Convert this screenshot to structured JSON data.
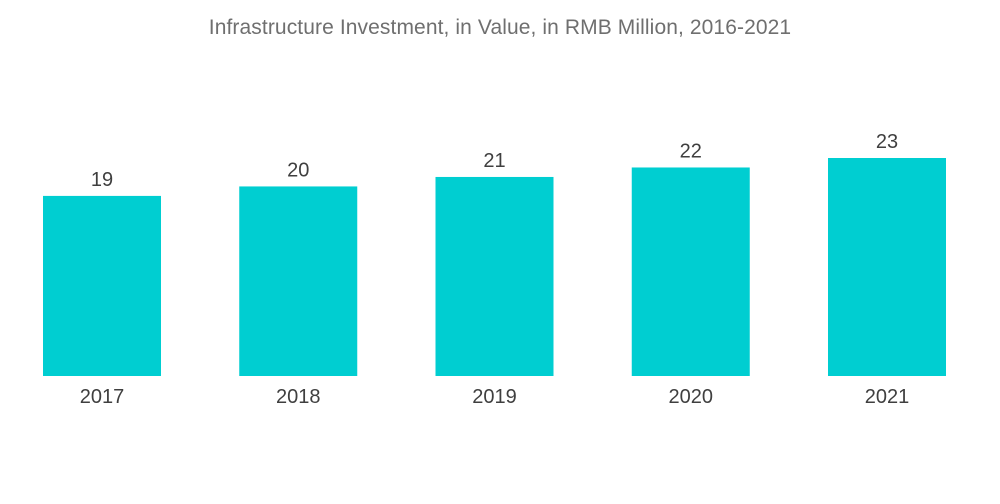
{
  "chart_data": {
    "type": "bar",
    "title": "Infrastructure Investment, in Value, in RMB Million, 2016-2021",
    "categories": [
      "2017",
      "2018",
      "2019",
      "2020",
      "2021"
    ],
    "values": [
      19,
      20,
      21,
      22,
      23
    ],
    "value_labels": [
      "19",
      "20",
      "21",
      "22",
      "23"
    ],
    "xlabel": "",
    "ylabel": "",
    "ylim": [
      0,
      23
    ],
    "grid": false,
    "legend": "none",
    "colors": {
      "bar": "#00ced1"
    }
  }
}
